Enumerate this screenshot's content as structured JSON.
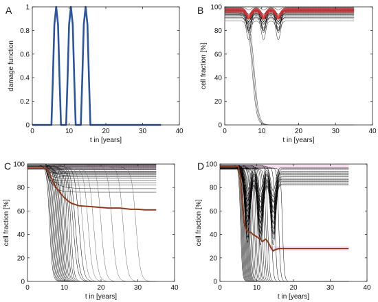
{
  "chart_data": [
    {
      "panel": "A",
      "type": "line",
      "xlabel": "t in [years]",
      "ylabel": "damage function",
      "xlim": [
        0,
        40
      ],
      "ylim": [
        0,
        1
      ],
      "xticks": [
        0,
        10,
        20,
        30,
        40
      ],
      "yticks": [
        0,
        0.2,
        0.4,
        0.6,
        0.8,
        1
      ],
      "series": [
        {
          "color": "#2b55a0",
          "x": [
            0,
            5.2,
            5.6,
            6.0,
            6.5,
            7.0,
            7.4,
            7.8,
            9.2,
            9.6,
            10.0,
            10.5,
            11.0,
            11.4,
            11.8,
            13.2,
            13.6,
            14.0,
            14.5,
            15.0,
            15.4,
            15.8,
            35
          ],
          "y": [
            0,
            0,
            0.4,
            0.85,
            1.0,
            0.85,
            0.4,
            0,
            0,
            0.4,
            0.85,
            1.0,
            0.85,
            0.4,
            0,
            0,
            0.4,
            0.85,
            1.0,
            0.85,
            0.4,
            0,
            0
          ]
        }
      ]
    },
    {
      "panel": "B",
      "type": "line",
      "xlabel": "t in [years]",
      "ylabel": "cell fraction [%]",
      "xlim": [
        0,
        40
      ],
      "ylim": [
        0,
        100
      ],
      "xticks": [
        0,
        10,
        20,
        30,
        40
      ],
      "yticks": [
        0,
        20,
        40,
        60,
        80,
        100
      ],
      "ensemble": {
        "black_start_levels": [
          99.5,
          99,
          98.5,
          98,
          97.5,
          97,
          96.5,
          96,
          95.5,
          95,
          94.5,
          94,
          93.5,
          93,
          92,
          91,
          90,
          88
        ],
        "dip_depths": [
          5,
          9,
          14,
          20,
          25
        ],
        "collapsing_curves": [
          {
            "start": 95,
            "collapse_at": 6.2
          },
          {
            "start": 94,
            "collapse_at": 6.5
          },
          {
            "start": 93,
            "collapse_at": 6.8
          }
        ],
        "mean_curve": {
          "color": "#d62728",
          "level": 97,
          "dip_depth": 6
        }
      }
    },
    {
      "panel": "C",
      "type": "line",
      "xlabel": "t in [years]",
      "ylabel": "cell fraction [%]",
      "xlim": [
        0,
        40
      ],
      "ylim": [
        0,
        100
      ],
      "xticks": [
        0,
        10,
        20,
        30,
        40
      ],
      "yticks": [
        0,
        20,
        40,
        60,
        80,
        100
      ],
      "ensemble": {
        "surviving_final_levels": [
          100,
          99.5,
          99,
          98.5,
          98,
          97.5,
          97,
          96,
          95.5,
          95,
          94,
          93.5,
          92.5,
          92,
          91,
          90,
          89,
          88,
          86,
          84,
          82,
          79,
          76
        ],
        "collapse_times": [
          6,
          6.3,
          6.6,
          6.9,
          7.2,
          7.5,
          7.8,
          8.1,
          8.4,
          8.7,
          9,
          9.3,
          9.6,
          10,
          10.4,
          10.8,
          11.3,
          11.8,
          12.4,
          13,
          14,
          15,
          16.5,
          18,
          20,
          23,
          26,
          29.5
        ],
        "mean_curve": {
          "color": "#8b3a1a",
          "x": [
            0,
            5,
            5.5,
            6,
            6.5,
            7,
            8,
            9,
            10,
            11,
            12,
            14,
            16,
            18,
            20,
            22,
            25,
            28,
            30,
            32,
            35
          ],
          "y": [
            96.5,
            96.5,
            95,
            92,
            88,
            84,
            79,
            75,
            71.5,
            68.5,
            66.5,
            64.5,
            64,
            63.5,
            63,
            62.5,
            62.5,
            61.5,
            61.5,
            61,
            61
          ]
        }
      }
    },
    {
      "panel": "D",
      "type": "line",
      "xlabel": "t in [years]",
      "ylabel": "cell fraction [%]",
      "xlim": [
        0,
        40
      ],
      "ylim": [
        0,
        100
      ],
      "xticks": [
        0,
        10,
        20,
        30,
        40
      ],
      "yticks": [
        0,
        20,
        40,
        60,
        80,
        100
      ],
      "ensemble": {
        "surviving_final_levels": [
          97,
          96,
          95,
          94,
          93,
          92,
          91,
          90,
          89,
          88,
          87,
          86,
          85,
          84,
          83,
          82
        ],
        "collapse_times": [
          5.6,
          5.8,
          6,
          6.2,
          6.4,
          6.6,
          6.8,
          7,
          7.2,
          7.4,
          7.6,
          7.8,
          8,
          8.3,
          8.6,
          9,
          9.4,
          9.8,
          10.2,
          10.6,
          11,
          11.5,
          12,
          12.5,
          13,
          14,
          15,
          16,
          17
        ],
        "mean_curve": {
          "color": "#8b3a1a",
          "x": [
            0,
            5,
            5.5,
            6,
            6.5,
            7,
            7.5,
            8,
            8.5,
            9,
            10,
            11,
            11.5,
            12,
            12.5,
            13,
            13.5,
            14,
            14.5,
            15,
            16,
            18,
            20,
            25,
            30,
            35
          ],
          "y": [
            98,
            98,
            90,
            70,
            52,
            45,
            43,
            42,
            41.5,
            40,
            38,
            36,
            34,
            35,
            36,
            34,
            31,
            28,
            26,
            27,
            28,
            28,
            28,
            28,
            28,
            28
          ]
        }
      }
    }
  ]
}
